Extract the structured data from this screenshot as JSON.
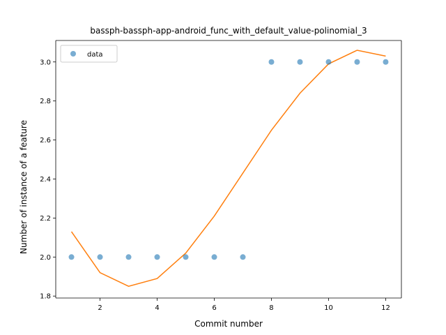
{
  "chart_data": {
    "type": "scatter",
    "title": "bassph-bassph-app-android_func_with_default_value-polinomial_3",
    "xlabel": "Commit number",
    "ylabel": "Number of instance of a feature",
    "xlim": [
      0.45,
      12.55
    ],
    "ylim": [
      1.79,
      3.11
    ],
    "xticks": [
      2,
      4,
      6,
      8,
      10,
      12
    ],
    "yticks": [
      1.8,
      2.0,
      2.2,
      2.4,
      2.6,
      2.8,
      3.0
    ],
    "xtick_labels": [
      "2",
      "4",
      "6",
      "8",
      "10",
      "12"
    ],
    "ytick_labels": [
      "1.8",
      "2.0",
      "2.2",
      "2.4",
      "2.6",
      "2.8",
      "3.0"
    ],
    "grid": false,
    "legend_position": "top-left",
    "legend_entries": [
      "data"
    ],
    "series": [
      {
        "name": "data",
        "kind": "scatter",
        "color": "#1f77b4",
        "x": [
          1,
          2,
          3,
          4,
          5,
          6,
          7,
          8,
          9,
          10,
          11,
          12
        ],
        "y": [
          2,
          2,
          2,
          2,
          2,
          2,
          2,
          3,
          3,
          3,
          3,
          3
        ]
      },
      {
        "kind": "line",
        "color": "#ff7f0e",
        "x": [
          1,
          2,
          3,
          4,
          5,
          6,
          7,
          8,
          9,
          10,
          11,
          12
        ],
        "y": [
          2.13,
          1.92,
          1.85,
          1.89,
          2.02,
          2.21,
          2.43,
          2.65,
          2.84,
          2.99,
          3.06,
          3.03
        ]
      }
    ]
  }
}
